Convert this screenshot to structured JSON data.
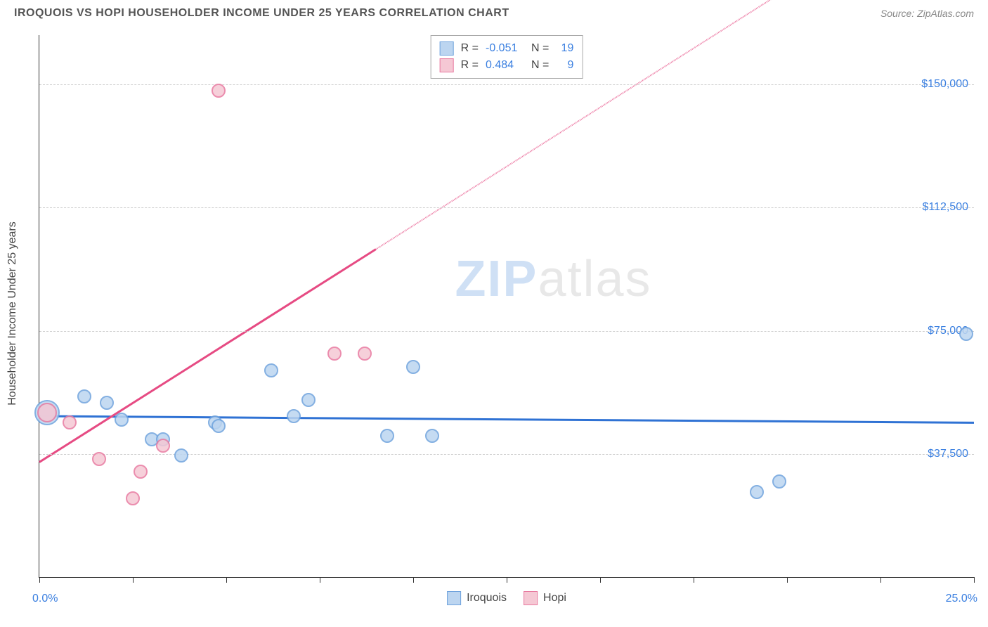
{
  "header": {
    "title": "IROQUOIS VS HOPI HOUSEHOLDER INCOME UNDER 25 YEARS CORRELATION CHART",
    "source": "Source: ZipAtlas.com"
  },
  "chart": {
    "type": "scatter",
    "yaxis_title": "Householder Income Under 25 years",
    "watermark_bold": "ZIP",
    "watermark_rest": "atlas",
    "xlim": [
      0,
      25
    ],
    "ylim": [
      0,
      165000
    ],
    "xlabel_min": "0.0%",
    "xlabel_max": "25.0%",
    "xtick_positions_pct": [
      0,
      10,
      20,
      30,
      40,
      50,
      60,
      70,
      80,
      90,
      100
    ],
    "ygrid": [
      {
        "value": 37500,
        "label": "$37,500"
      },
      {
        "value": 75000,
        "label": "$75,000"
      },
      {
        "value": 112500,
        "label": "$112,500"
      },
      {
        "value": 150000,
        "label": "$150,000"
      }
    ],
    "background_color": "#ffffff",
    "grid_color": "#d0d0d0",
    "tick_label_color": "#3a7fe0",
    "series": [
      {
        "name": "Iroquois",
        "fill": "#bcd5f0",
        "stroke": "#6fa3dd",
        "line_color": "#2f72d4",
        "stats": {
          "R": "-0.051",
          "N": "19"
        },
        "trend": {
          "x1": 0,
          "y1": 49000,
          "x2": 25,
          "y2": 47000,
          "solid_until_x": 25
        },
        "points": [
          {
            "x": 0.2,
            "y": 50000,
            "r": 12
          },
          {
            "x": 0.2,
            "y": 50000,
            "r": 18
          },
          {
            "x": 1.2,
            "y": 55000,
            "r": 10
          },
          {
            "x": 1.8,
            "y": 53000,
            "r": 10
          },
          {
            "x": 2.2,
            "y": 48000,
            "r": 10
          },
          {
            "x": 3.0,
            "y": 42000,
            "r": 10
          },
          {
            "x": 3.3,
            "y": 42000,
            "r": 10
          },
          {
            "x": 3.8,
            "y": 37000,
            "r": 10
          },
          {
            "x": 4.7,
            "y": 47000,
            "r": 10
          },
          {
            "x": 4.8,
            "y": 46000,
            "r": 10
          },
          {
            "x": 6.2,
            "y": 63000,
            "r": 10
          },
          {
            "x": 6.8,
            "y": 49000,
            "r": 10
          },
          {
            "x": 7.2,
            "y": 54000,
            "r": 10
          },
          {
            "x": 9.3,
            "y": 43000,
            "r": 10
          },
          {
            "x": 10.0,
            "y": 64000,
            "r": 10
          },
          {
            "x": 10.5,
            "y": 43000,
            "r": 10
          },
          {
            "x": 19.2,
            "y": 26000,
            "r": 10
          },
          {
            "x": 19.8,
            "y": 29000,
            "r": 10
          },
          {
            "x": 24.8,
            "y": 74000,
            "r": 10
          }
        ]
      },
      {
        "name": "Hopi",
        "fill": "#f5c8d4",
        "stroke": "#e87aa0",
        "line_color": "#e64b83",
        "stats": {
          "R": "0.484",
          "N": "9"
        },
        "trend": {
          "x1": 0,
          "y1": 35000,
          "x2": 25,
          "y2": 215000,
          "solid_until_x": 9
        },
        "points": [
          {
            "x": 0.2,
            "y": 50000,
            "r": 14
          },
          {
            "x": 0.8,
            "y": 47000,
            "r": 10
          },
          {
            "x": 1.6,
            "y": 36000,
            "r": 10
          },
          {
            "x": 2.5,
            "y": 24000,
            "r": 10
          },
          {
            "x": 2.7,
            "y": 32000,
            "r": 10
          },
          {
            "x": 3.3,
            "y": 40000,
            "r": 10
          },
          {
            "x": 4.8,
            "y": 148000,
            "r": 10
          },
          {
            "x": 7.9,
            "y": 68000,
            "r": 10
          },
          {
            "x": 8.7,
            "y": 68000,
            "r": 10
          }
        ]
      }
    ],
    "stats_box_labels": {
      "R": "R =",
      "N": "N ="
    }
  }
}
